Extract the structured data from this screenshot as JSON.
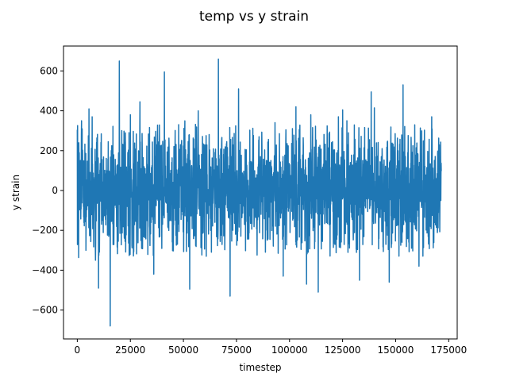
{
  "chart_data": {
    "type": "line",
    "title": "temp vs y strain",
    "xlabel": "timestep",
    "ylabel": "y strain",
    "xlim": [
      -6500,
      179000
    ],
    "ylim": [
      -745,
      725
    ],
    "xticks": [
      0,
      25000,
      50000,
      75000,
      100000,
      125000,
      150000,
      175000
    ],
    "yticks": [
      -600,
      -400,
      -200,
      0,
      200,
      400,
      600
    ],
    "grid": false,
    "legend": "none",
    "series": [
      {
        "color": "#1f77b4",
        "x_range": [
          0,
          171500
        ],
        "peaks": [
          {
            "x": 2000,
            "y": 350
          },
          {
            "x": 5500,
            "y": 410
          },
          {
            "x": 7000,
            "y": 370
          },
          {
            "x": 10000,
            "y": -490
          },
          {
            "x": 15500,
            "y": -680
          },
          {
            "x": 19800,
            "y": 650
          },
          {
            "x": 25000,
            "y": 380
          },
          {
            "x": 29500,
            "y": 445
          },
          {
            "x": 36000,
            "y": -420
          },
          {
            "x": 41000,
            "y": 595
          },
          {
            "x": 53000,
            "y": -495
          },
          {
            "x": 57000,
            "y": 400
          },
          {
            "x": 66500,
            "y": 660
          },
          {
            "x": 72000,
            "y": -530
          },
          {
            "x": 76000,
            "y": 510
          },
          {
            "x": 97000,
            "y": -430
          },
          {
            "x": 103000,
            "y": 420
          },
          {
            "x": 108000,
            "y": -470
          },
          {
            "x": 110000,
            "y": 380
          },
          {
            "x": 113500,
            "y": -510
          },
          {
            "x": 123000,
            "y": 370
          },
          {
            "x": 125000,
            "y": 405
          },
          {
            "x": 133000,
            "y": -450
          },
          {
            "x": 138500,
            "y": 495
          },
          {
            "x": 140000,
            "y": 415
          },
          {
            "x": 147000,
            "y": -460
          },
          {
            "x": 153500,
            "y": 530
          },
          {
            "x": 161000,
            "y": -380
          },
          {
            "x": 167000,
            "y": 370
          }
        ]
      }
    ]
  }
}
